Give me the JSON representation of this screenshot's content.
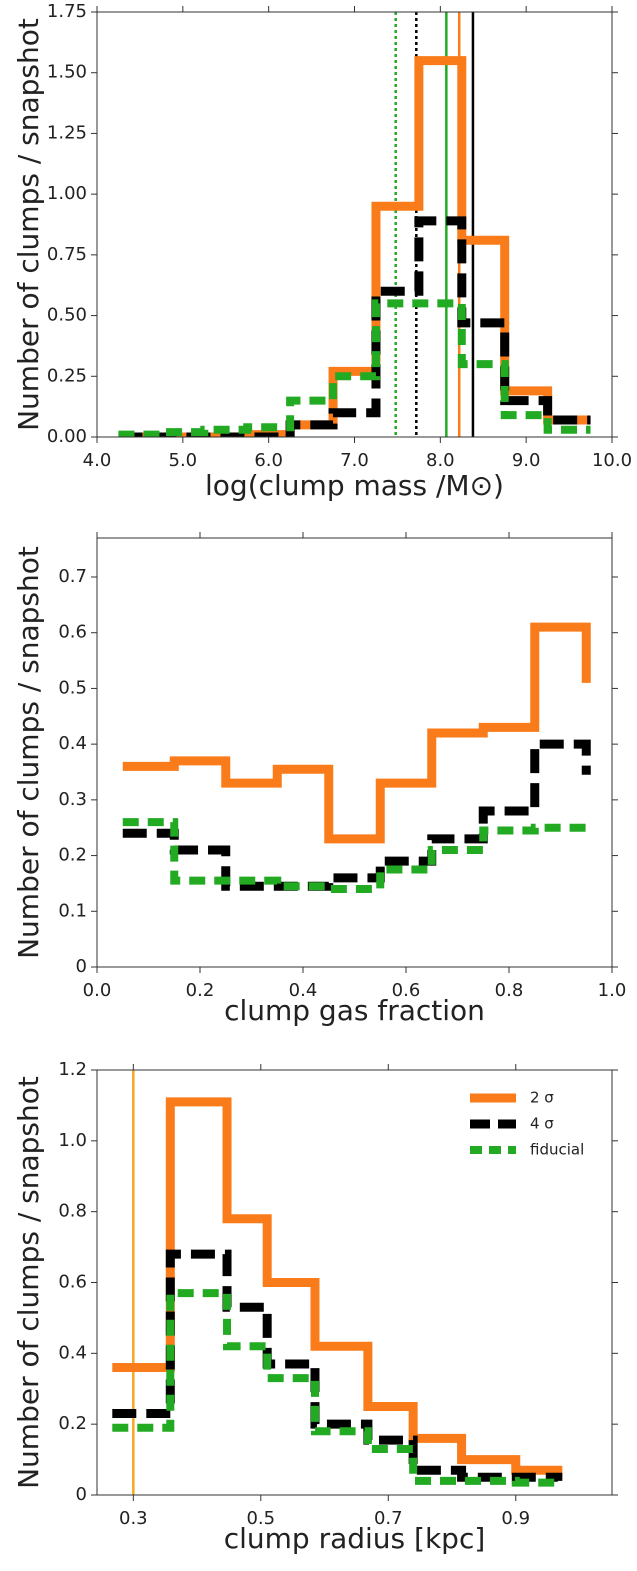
{
  "chart_data": [
    {
      "type": "line",
      "drawstyle": "steps-post",
      "xlabel": "log(clump mass /M⊙)",
      "ylabel": "Number of clumps / snapshot",
      "x": [
        4.25,
        4.75,
        5.25,
        5.75,
        6.25,
        6.75,
        7.25,
        7.75,
        8.25,
        8.75,
        9.25,
        9.75
      ],
      "series": [
        {
          "color": "#f97b19",
          "style": "solid",
          "values": [
            0,
            0,
            0,
            0.01,
            0.05,
            0.27,
            0.95,
            1.55,
            0.81,
            0.19,
            0.07,
            0.07
          ]
        },
        {
          "color": "#000000",
          "style": "dashed",
          "values": [
            0,
            0,
            0,
            0,
            0.05,
            0.1,
            0.6,
            0.89,
            0.47,
            0.15,
            0.07,
            0.07
          ]
        },
        {
          "color": "#22aa22",
          "style": "dashed",
          "values": [
            0.01,
            0.02,
            0.03,
            0.04,
            0.15,
            0.25,
            0.55,
            0.55,
            0.3,
            0.09,
            0.03,
            0.03
          ]
        }
      ],
      "vlines": [
        {
          "x": 7.48,
          "color": "#22aa22",
          "style": "dotted"
        },
        {
          "x": 7.72,
          "color": "#000000",
          "style": "dotted"
        },
        {
          "x": 8.07,
          "color": "#22aa22",
          "style": "solid"
        },
        {
          "x": 8.22,
          "color": "#f97b19",
          "style": "solid"
        },
        {
          "x": 8.38,
          "color": "#000000",
          "style": "solid"
        }
      ],
      "xlim": [
        4,
        10
      ],
      "xticks": [
        {
          "value": 4,
          "label": "4.0"
        },
        {
          "value": 5,
          "label": "5.0"
        },
        {
          "value": 6,
          "label": "6.0"
        },
        {
          "value": 7,
          "label": "7.0"
        },
        {
          "value": 8,
          "label": "8.0"
        },
        {
          "value": 9,
          "label": "9.0"
        },
        {
          "value": 10,
          "label": "10.0"
        }
      ],
      "ylim": [
        0,
        1.75
      ],
      "yticks": [
        {
          "value": 0,
          "label": "0.00"
        },
        {
          "value": 0.25,
          "label": "0.25"
        },
        {
          "value": 0.5,
          "label": "0.50"
        },
        {
          "value": 0.75,
          "label": "0.75"
        },
        {
          "value": 1,
          "label": "1.00"
        },
        {
          "value": 1.25,
          "label": "1.25"
        },
        {
          "value": 1.5,
          "label": "1.50"
        },
        {
          "value": 1.75,
          "label": "1.75"
        }
      ]
    },
    {
      "type": "line",
      "drawstyle": "steps-post",
      "xlabel": "clump gas fraction",
      "ylabel": "Number of clumps / snapshot",
      "x": [
        0.05,
        0.15,
        0.25,
        0.35,
        0.45,
        0.55,
        0.65,
        0.75,
        0.85,
        0.95
      ],
      "series": [
        {
          "color": "#f97b19",
          "style": "solid",
          "values": [
            0.36,
            0.37,
            0.33,
            0.355,
            0.23,
            0.33,
            0.42,
            0.43,
            0.61,
            0.51
          ]
        },
        {
          "color": "#000000",
          "style": "dashed",
          "values": [
            0.24,
            0.21,
            0.145,
            0.145,
            0.16,
            0.19,
            0.23,
            0.28,
            0.4,
            0.345
          ]
        },
        {
          "color": "#22aa22",
          "style": "dashed",
          "values": [
            0.26,
            0.155,
            0.155,
            0.145,
            0.14,
            0.175,
            0.21,
            0.245,
            0.25,
            0.24
          ]
        }
      ],
      "xlim": [
        0,
        1
      ],
      "xticks": [
        {
          "value": 0,
          "label": "0.0"
        },
        0.2,
        0.4,
        0.6,
        0.8,
        {
          "value": 1,
          "label": "1.0"
        }
      ],
      "ylim": [
        0,
        0.77
      ],
      "yticks": [
        0,
        0.1,
        0.2,
        0.3,
        0.4,
        0.5,
        0.6,
        0.7
      ]
    },
    {
      "type": "line",
      "drawstyle": "steps-post",
      "xlabel": "clump radius [kpc]",
      "ylabel": "Number of clumps / snapshot",
      "legend": "upper right",
      "x": [
        0.267,
        0.358,
        0.447,
        0.51,
        0.585,
        0.668,
        0.739,
        0.815,
        0.9,
        0.966
      ],
      "series": [
        {
          "name": "2 σ",
          "color": "#f97b19",
          "style": "solid",
          "values": [
            0.36,
            1.11,
            0.78,
            0.6,
            0.42,
            0.25,
            0.16,
            0.1,
            0.07,
            0.05
          ]
        },
        {
          "name": "4 σ",
          "color": "#000000",
          "style": "dashed",
          "values": [
            0.23,
            0.68,
            0.53,
            0.37,
            0.2,
            0.155,
            0.07,
            0.05,
            0.05,
            0.04
          ]
        },
        {
          "name": "fiducial",
          "color": "#22aa22",
          "style": "dashed",
          "values": [
            0.19,
            0.57,
            0.42,
            0.33,
            0.18,
            0.13,
            0.04,
            0.04,
            0.035,
            0.03
          ]
        }
      ],
      "vlines": [
        {
          "x": 0.3,
          "color": "#f5a623",
          "style": "solid"
        }
      ],
      "xlim": [
        0.243,
        1.051
      ],
      "xticks": [
        0.3,
        0.5,
        0.7,
        0.9
      ],
      "ylim": [
        0,
        1.2
      ],
      "yticks": [
        0,
        0.2,
        0.4,
        0.6,
        0.8,
        {
          "value": 1,
          "label": "1.0"
        },
        1.2
      ]
    }
  ]
}
